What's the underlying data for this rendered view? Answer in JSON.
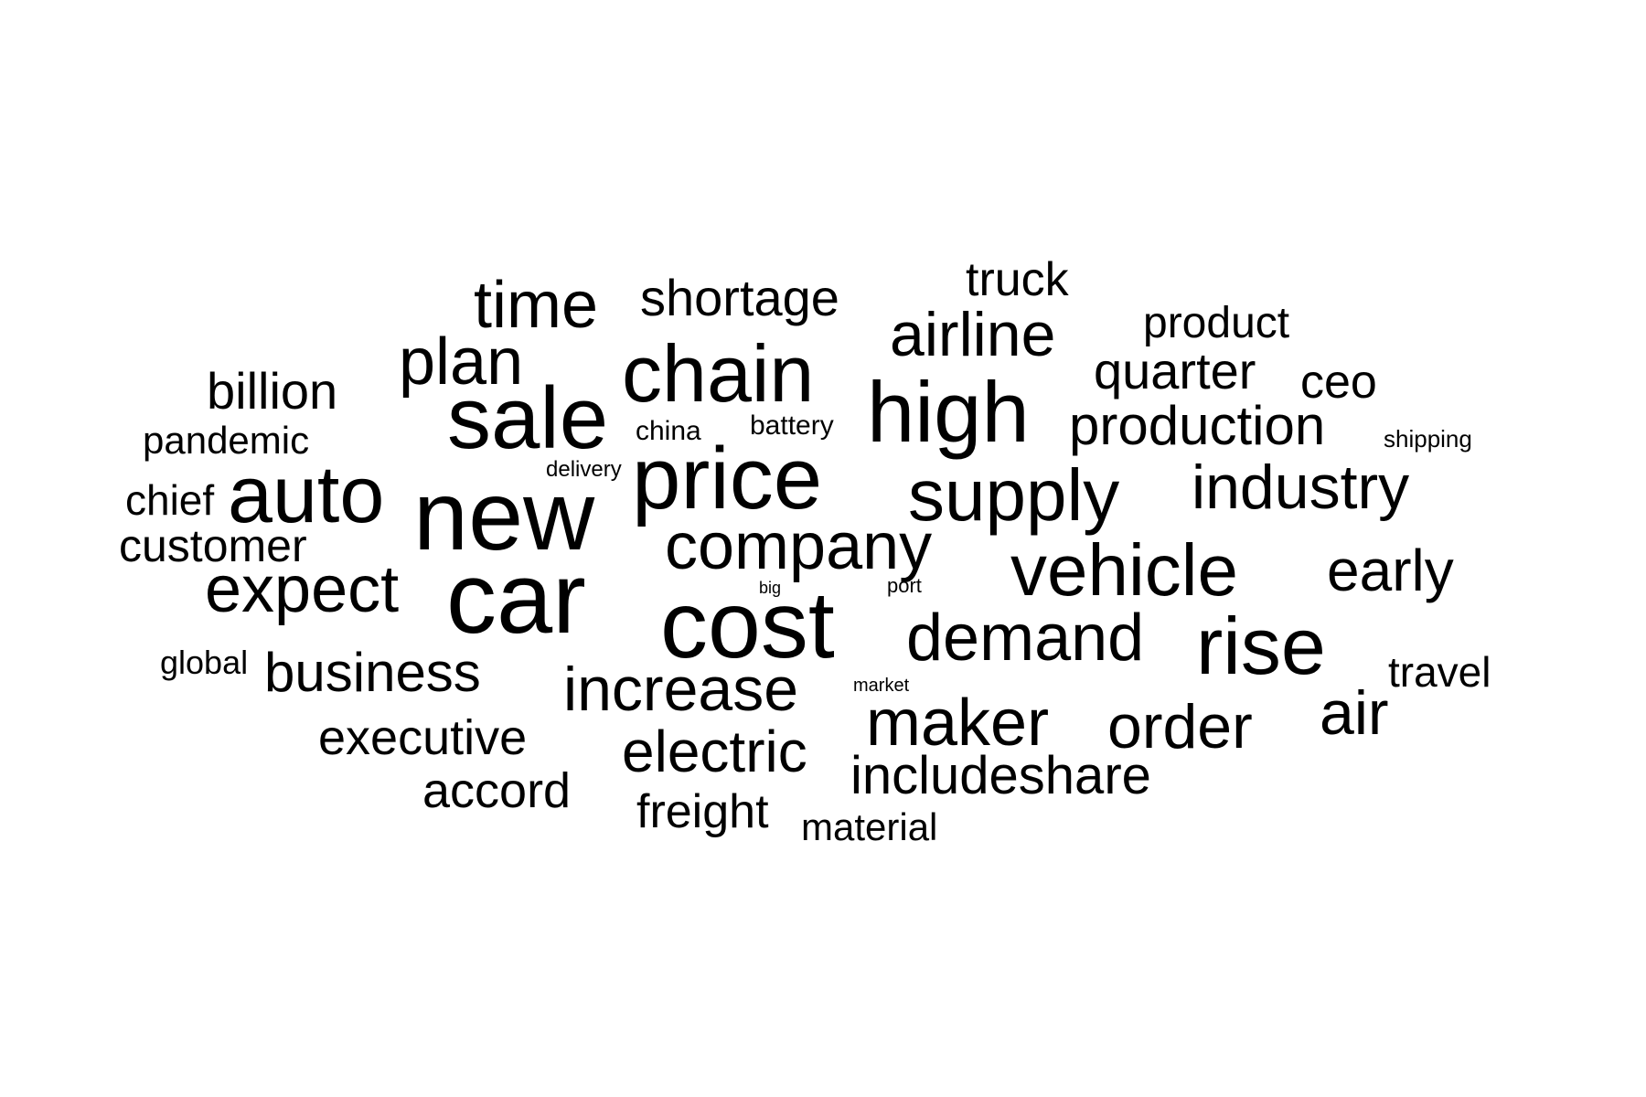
{
  "words": [
    {
      "text": "cost"
    },
    {
      "text": "car"
    },
    {
      "text": "price"
    },
    {
      "text": "new"
    },
    {
      "text": "sale"
    },
    {
      "text": "high"
    },
    {
      "text": "chain"
    },
    {
      "text": "supply"
    },
    {
      "text": "auto"
    },
    {
      "text": "rise"
    },
    {
      "text": "company"
    },
    {
      "text": "vehicle"
    },
    {
      "text": "demand"
    },
    {
      "text": "maker"
    },
    {
      "text": "plan"
    },
    {
      "text": "expect"
    },
    {
      "text": "increase"
    },
    {
      "text": "industry"
    },
    {
      "text": "airline"
    },
    {
      "text": "time"
    },
    {
      "text": "electric"
    },
    {
      "text": "production"
    },
    {
      "text": "air"
    },
    {
      "text": "order"
    },
    {
      "text": "early"
    },
    {
      "text": "business"
    },
    {
      "text": "includeshare"
    },
    {
      "text": "quarter"
    },
    {
      "text": "shortage"
    },
    {
      "text": "billion"
    },
    {
      "text": "executive"
    },
    {
      "text": "accord"
    },
    {
      "text": "freight"
    },
    {
      "text": "customer"
    },
    {
      "text": "truck"
    },
    {
      "text": "product"
    },
    {
      "text": "chief"
    },
    {
      "text": "ceo"
    },
    {
      "text": "pandemic"
    },
    {
      "text": "travel"
    },
    {
      "text": "material"
    },
    {
      "text": "global"
    },
    {
      "text": "china"
    },
    {
      "text": "battery"
    },
    {
      "text": "delivery"
    },
    {
      "text": "shipping"
    },
    {
      "text": "port"
    },
    {
      "text": "market"
    },
    {
      "text": "big"
    }
  ]
}
